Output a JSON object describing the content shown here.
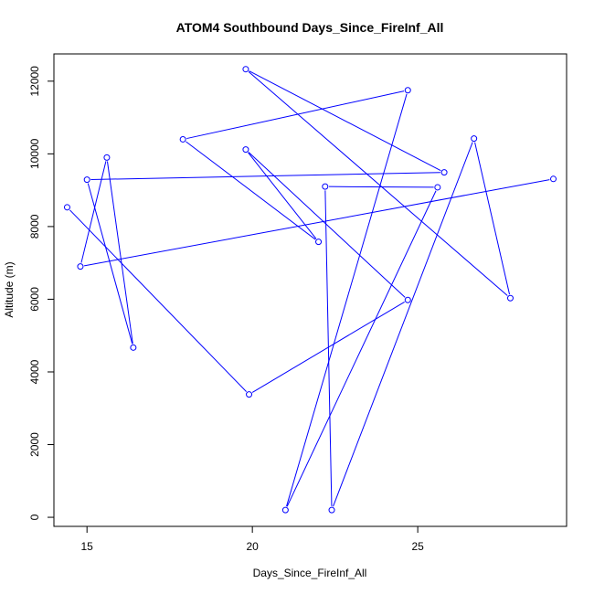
{
  "chart_data": {
    "type": "line",
    "title": "ATOM4 Southbound Days_Since_FireInf_All",
    "xlabel": "Days_Since_FireInf_All",
    "ylabel": "Altitude (m)",
    "xlim": [
      14.0,
      29.5
    ],
    "ylim": [
      -250,
      12750
    ],
    "x_ticks": [
      15,
      20,
      25
    ],
    "y_ticks": [
      0,
      2000,
      4000,
      6000,
      8000,
      10000,
      12000
    ],
    "line_color": "#0000ff",
    "marker": "open-circle",
    "grid": false,
    "series": [
      {
        "x": [
          14.4,
          19.9,
          24.7,
          19.8,
          22.0,
          17.9,
          24.7,
          21.0,
          25.6,
          22.2,
          22.4,
          26.7,
          27.8,
          19.8,
          25.8,
          15.0,
          16.4,
          15.6,
          14.8,
          29.1
        ],
        "y": [
          8530,
          3380,
          5980,
          10120,
          7580,
          10400,
          11750,
          200,
          9080,
          9100,
          200,
          10420,
          6030,
          12330,
          9490,
          9290,
          4670,
          9900,
          6900,
          9310
        ]
      }
    ]
  }
}
